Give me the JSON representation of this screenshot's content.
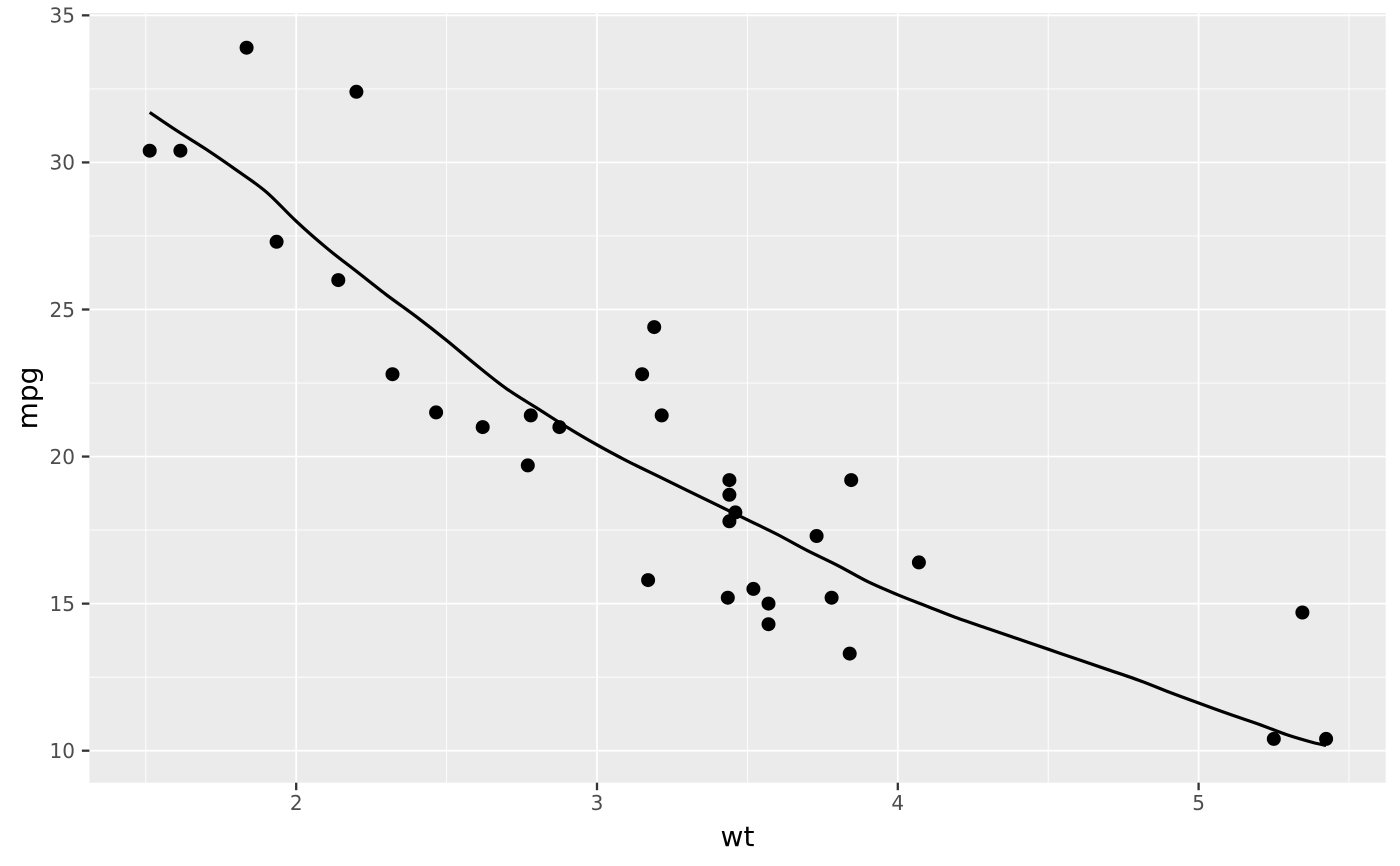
{
  "chart_data": {
    "type": "scatter",
    "title": "",
    "xlabel": "wt",
    "ylabel": "mpg",
    "xlim": [
      1.3125,
      5.622
    ],
    "ylim": [
      8.912,
      35.08
    ],
    "x_major_ticks": [
      2,
      3,
      4,
      5
    ],
    "y_major_ticks": [
      10,
      15,
      20,
      25,
      30,
      35
    ],
    "x_minor_ticks": [
      1.5,
      2.5,
      3.5,
      4.5,
      5.5
    ],
    "y_minor_ticks": [
      12.5,
      17.5,
      22.5,
      27.5,
      32.5
    ],
    "grid": true,
    "legend_position": "none",
    "points": [
      [
        2.62,
        21.0
      ],
      [
        2.875,
        21.0
      ],
      [
        2.32,
        22.8
      ],
      [
        3.215,
        21.4
      ],
      [
        3.44,
        18.7
      ],
      [
        3.46,
        18.1
      ],
      [
        3.57,
        14.3
      ],
      [
        3.19,
        24.4
      ],
      [
        3.15,
        22.8
      ],
      [
        3.44,
        19.2
      ],
      [
        3.44,
        17.8
      ],
      [
        4.07,
        16.4
      ],
      [
        3.73,
        17.3
      ],
      [
        3.78,
        15.2
      ],
      [
        5.25,
        10.4
      ],
      [
        5.424,
        10.4
      ],
      [
        5.345,
        14.7
      ],
      [
        2.2,
        32.4
      ],
      [
        1.615,
        30.4
      ],
      [
        1.835,
        33.9
      ],
      [
        2.465,
        21.5
      ],
      [
        3.52,
        15.5
      ],
      [
        3.435,
        15.2
      ],
      [
        3.84,
        13.3
      ],
      [
        3.845,
        19.2
      ],
      [
        1.935,
        27.3
      ],
      [
        2.14,
        26.0
      ],
      [
        1.513,
        30.4
      ],
      [
        3.17,
        15.8
      ],
      [
        2.77,
        19.7
      ],
      [
        3.57,
        15.0
      ],
      [
        2.78,
        21.4
      ]
    ],
    "smooth_line": [
      [
        1.513,
        31.7
      ],
      [
        1.6,
        31.1
      ],
      [
        1.7,
        30.45
      ],
      [
        1.8,
        29.75
      ],
      [
        1.9,
        29.0
      ],
      [
        2.0,
        28.0
      ],
      [
        2.1,
        27.1
      ],
      [
        2.2,
        26.3
      ],
      [
        2.3,
        25.5
      ],
      [
        2.4,
        24.75
      ],
      [
        2.5,
        23.95
      ],
      [
        2.6,
        23.1
      ],
      [
        2.7,
        22.3
      ],
      [
        2.8,
        21.65
      ],
      [
        2.9,
        21.0
      ],
      [
        3.0,
        20.4
      ],
      [
        3.1,
        19.85
      ],
      [
        3.2,
        19.35
      ],
      [
        3.3,
        18.85
      ],
      [
        3.4,
        18.35
      ],
      [
        3.5,
        17.85
      ],
      [
        3.6,
        17.35
      ],
      [
        3.7,
        16.8
      ],
      [
        3.8,
        16.3
      ],
      [
        3.9,
        15.75
      ],
      [
        4.0,
        15.3
      ],
      [
        4.1,
        14.9
      ],
      [
        4.2,
        14.5
      ],
      [
        4.3,
        14.15
      ],
      [
        4.4,
        13.8
      ],
      [
        4.5,
        13.45
      ],
      [
        4.6,
        13.1
      ],
      [
        4.7,
        12.75
      ],
      [
        4.8,
        12.4
      ],
      [
        4.9,
        12.0
      ],
      [
        5.0,
        11.62
      ],
      [
        5.1,
        11.25
      ],
      [
        5.2,
        10.9
      ],
      [
        5.3,
        10.52
      ],
      [
        5.38,
        10.28
      ],
      [
        5.424,
        10.18
      ]
    ],
    "style": {
      "panel_bg": "#EBEBEB",
      "grid_color": "#FFFFFF",
      "point_color": "#000000",
      "line_color": "#000000",
      "tick_label_color": "#4D4D4D",
      "tick_mark_color": "#333333",
      "title_color": "#000000"
    }
  }
}
